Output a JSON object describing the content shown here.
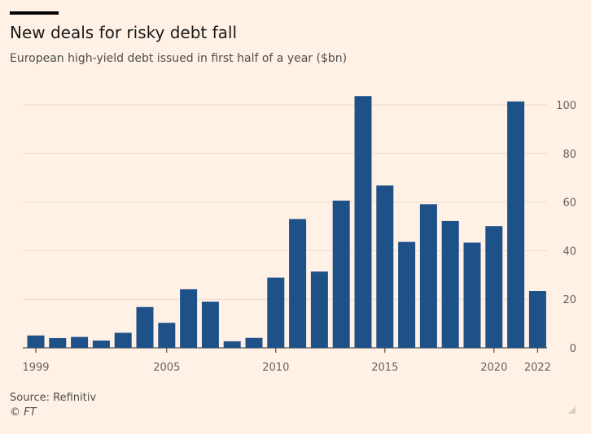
{
  "header": {
    "title": "New deals for risky debt fall",
    "subtitle": "European high-yield debt issued in first half of a year ($bn)"
  },
  "footer": {
    "source": "Source: Refinitiv",
    "copyright": "© FT"
  },
  "colors": {
    "background": "#fff1e5",
    "bar": "#1f5189",
    "grid": "#e8dccf",
    "text": "#66605c"
  },
  "chart_data": {
    "type": "bar",
    "categories": [
      "1999",
      "2000",
      "2001",
      "2002",
      "2003",
      "2004",
      "2005",
      "2006",
      "2007",
      "2008",
      "2009",
      "2010",
      "2011",
      "2012",
      "2013",
      "2014",
      "2015",
      "2016",
      "2017",
      "2018",
      "2019",
      "2020",
      "2021",
      "2022"
    ],
    "values": [
      5.1,
      4.0,
      4.5,
      3.0,
      6.2,
      16.8,
      10.3,
      24.1,
      19.0,
      2.7,
      4.1,
      28.9,
      53.0,
      31.4,
      60.6,
      103.6,
      66.8,
      43.6,
      59.1,
      52.2,
      43.3,
      50.1,
      101.4,
      23.4
    ],
    "x_tick_labels": [
      "1999",
      "2005",
      "2010",
      "2015",
      "2020",
      "2022"
    ],
    "y_ticks": [
      0,
      20,
      40,
      60,
      80,
      100
    ],
    "ylim": [
      0,
      110
    ],
    "grid": true,
    "y_axis_position": "right",
    "legend": "none"
  }
}
